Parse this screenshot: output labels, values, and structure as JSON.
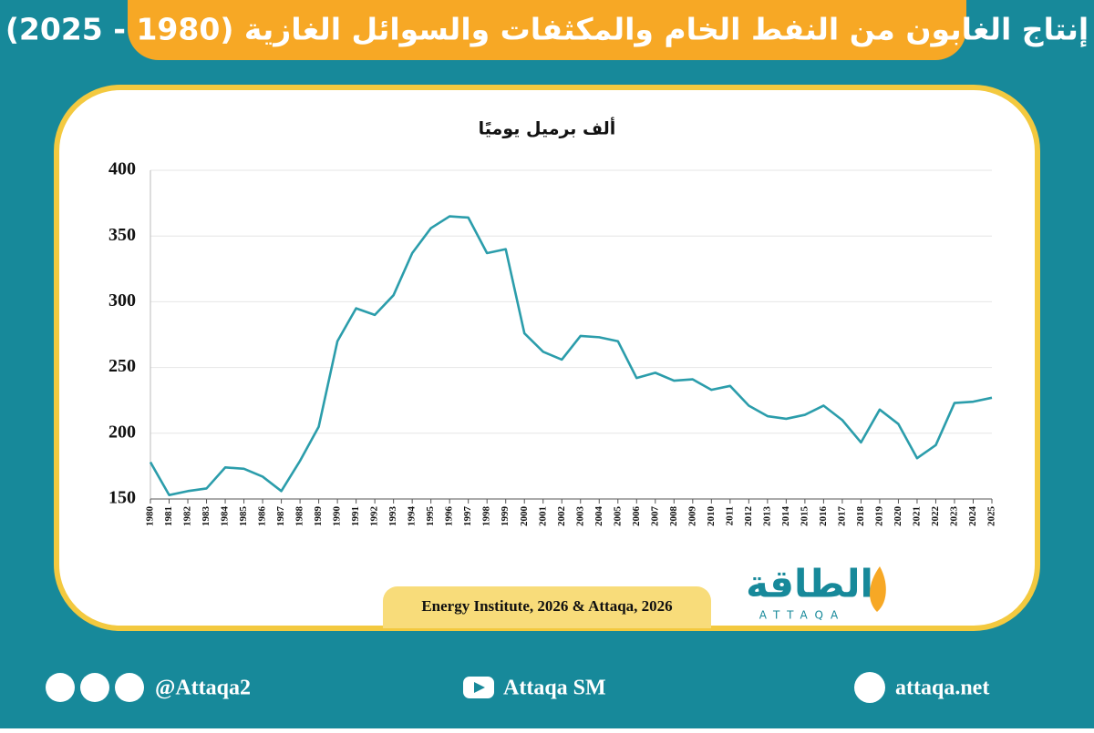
{
  "chart_data": {
    "type": "line",
    "title": "إنتاج الغابون من النفط الخام والمكثفات والسوائل الغازية (1980 - 2025)",
    "y_label": "ألف برميل يوميًا",
    "source": "Energy Institute, 2026 & Attaqa, 2026",
    "categories": [
      "1980",
      "1981",
      "1982",
      "1983",
      "1984",
      "1985",
      "1986",
      "1987",
      "1988",
      "1989",
      "1990",
      "1991",
      "1992",
      "1993",
      "1994",
      "1995",
      "1996",
      "1997",
      "1998",
      "1999",
      "2000",
      "2001",
      "2002",
      "2003",
      "2004",
      "2005",
      "2006",
      "2007",
      "2008",
      "2009",
      "2010",
      "2011",
      "2012",
      "2013",
      "2014",
      "2015",
      "2016",
      "2017",
      "2018",
      "2019",
      "2020",
      "2021",
      "2022",
      "2023",
      "2024",
      "2025"
    ],
    "values": [
      178,
      153,
      156,
      158,
      174,
      173,
      167,
      156,
      179,
      205,
      270,
      295,
      290,
      305,
      337,
      356,
      365,
      364,
      337,
      340,
      276,
      262,
      256,
      274,
      273,
      270,
      242,
      246,
      240,
      241,
      233,
      236,
      221,
      213,
      211,
      214,
      221,
      210,
      193,
      218,
      207,
      181,
      191,
      223,
      224,
      227
    ],
    "color": "#2b9dab",
    "ylim": [
      150,
      400
    ],
    "yticks": [
      150,
      200,
      250,
      300,
      350,
      400
    ],
    "grid": true
  },
  "logo": {
    "arabic": "الطاقة",
    "latin": "ATTAQA"
  },
  "footer": {
    "handle": "@Attaqa2",
    "youtube": "Attaqa SM",
    "website": "attaqa.net"
  }
}
